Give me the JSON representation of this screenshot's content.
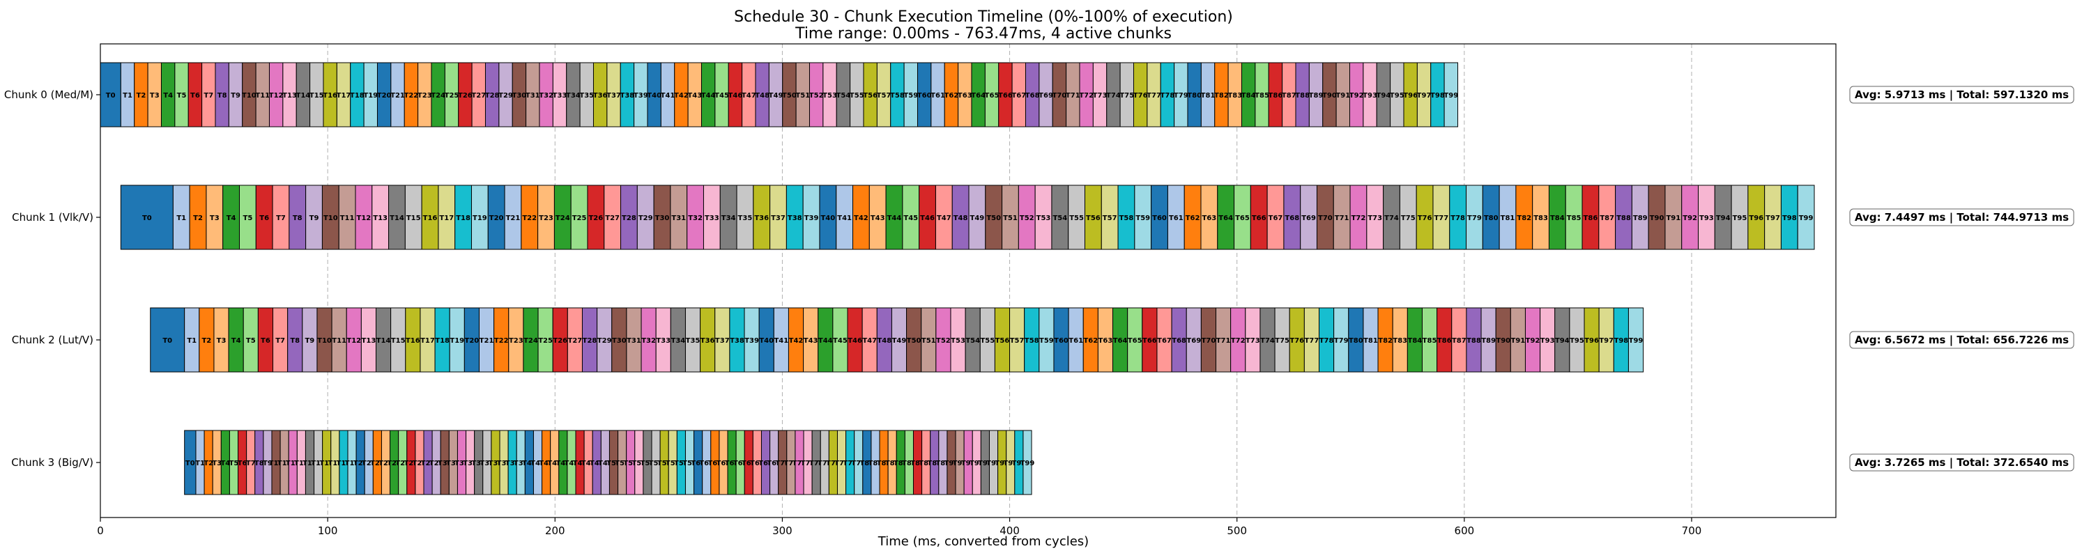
{
  "chart_data": {
    "type": "gantt",
    "title": "Schedule 30 - Chunk Execution Timeline (0%-100% of execution)",
    "subtitle": "Time range: 0.00ms - 763.47ms, 4 active chunks",
    "xlabel": "Time (ms, converted from cycles)",
    "xlim": [
      0,
      763.47
    ],
    "xticks": [
      0,
      100,
      200,
      300,
      400,
      500,
      600,
      700
    ],
    "grid": "vertical dashed",
    "palette": [
      "#1f77b4",
      "#aec7e8",
      "#ff7f0e",
      "#ffbb78",
      "#2ca02c",
      "#98df8a",
      "#d62728",
      "#ff9896",
      "#9467bd",
      "#c5b0d5",
      "#8c564b",
      "#c49c94",
      "#e377c2",
      "#f7b6d2",
      "#7f7f7f",
      "#c7c7c7",
      "#bcbd22",
      "#dbdb8d",
      "#17becf",
      "#9edae5"
    ],
    "series": [
      {
        "name": "Chunk 0 (Med/M)",
        "summary": "Avg: 5.9713 ms | Total: 597.1320 ms",
        "start": 0.0,
        "end": 597.13,
        "first_duration": 9.0,
        "task_count": 100
      },
      {
        "name": "Chunk 1 (Vlk/V)",
        "summary": "Avg: 7.4497 ms | Total: 744.9713 ms",
        "start": 9.0,
        "end": 753.97,
        "first_duration": 23.0,
        "task_count": 100
      },
      {
        "name": "Chunk 2 (Lut/V)",
        "summary": "Avg: 6.5672 ms | Total: 656.7226 ms",
        "start": 22.0,
        "end": 678.72,
        "first_duration": 15.0,
        "task_count": 100
      },
      {
        "name": "Chunk 3 (Big/V)",
        "summary": "Avg: 3.7265 ms | Total: 372.6540 ms",
        "start": 37.0,
        "end": 409.65,
        "first_duration": 5.0,
        "task_count": 100
      }
    ]
  }
}
